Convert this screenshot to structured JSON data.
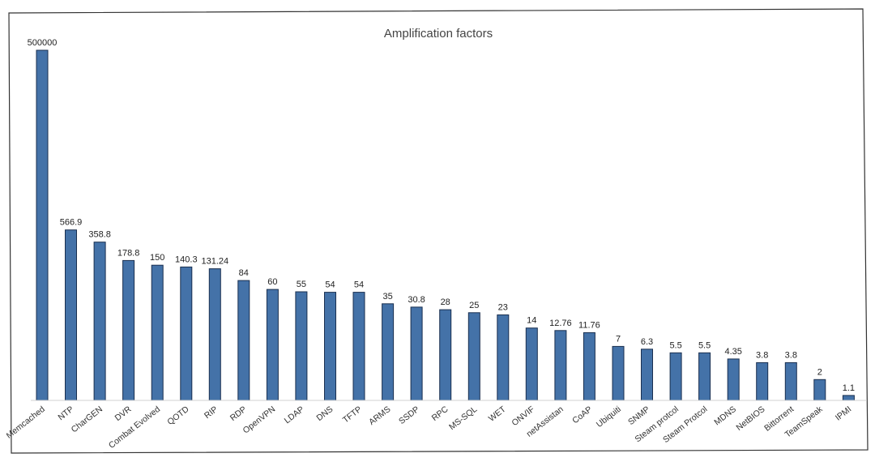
{
  "chart_data": {
    "type": "bar",
    "title": "Amplification factors",
    "xlabel": "",
    "ylabel": "",
    "grid": false,
    "legend": "none",
    "color": "#4472a8",
    "categories": [
      "Memcached",
      "NTP",
      "CharGEN",
      "DVR",
      "Combat Evolved",
      "QOTD",
      "RIP",
      "RDP",
      "OpenVPN",
      "LDAP",
      "DNS",
      "TFTP",
      "ARMS",
      "SSDP",
      "RPC",
      "MS-SQL",
      "WET",
      "ONVIF",
      "netAssistan",
      "CoAP",
      "Ubiquiti",
      "SNMP",
      "Steam protcol",
      "Steam Protcol",
      "MDNS",
      "NetBIOS",
      "Bittorrent",
      "TeamSpeak",
      "IPMI"
    ],
    "values": [
      500000,
      566.9,
      358.8,
      178.8,
      150,
      140.3,
      131.24,
      84,
      60,
      55,
      54,
      54,
      35,
      30.8,
      28,
      25,
      23,
      14,
      12.76,
      11.76,
      7,
      6.3,
      5.5,
      5.5,
      4.35,
      3.8,
      3.8,
      2,
      1.1
    ],
    "value_labels": [
      "500000",
      "566.9",
      "358.8",
      "178.8",
      "150",
      "140.3",
      "131.24",
      "84",
      "60",
      "55",
      "54",
      "54",
      "35",
      "30.8",
      "28",
      "25",
      "23",
      "14",
      "12.76",
      "11.76",
      "7",
      "6.3",
      "5.5",
      "5.5",
      "4.35",
      "3.8",
      "3.8",
      "2",
      "1.1"
    ],
    "scale": "log"
  }
}
